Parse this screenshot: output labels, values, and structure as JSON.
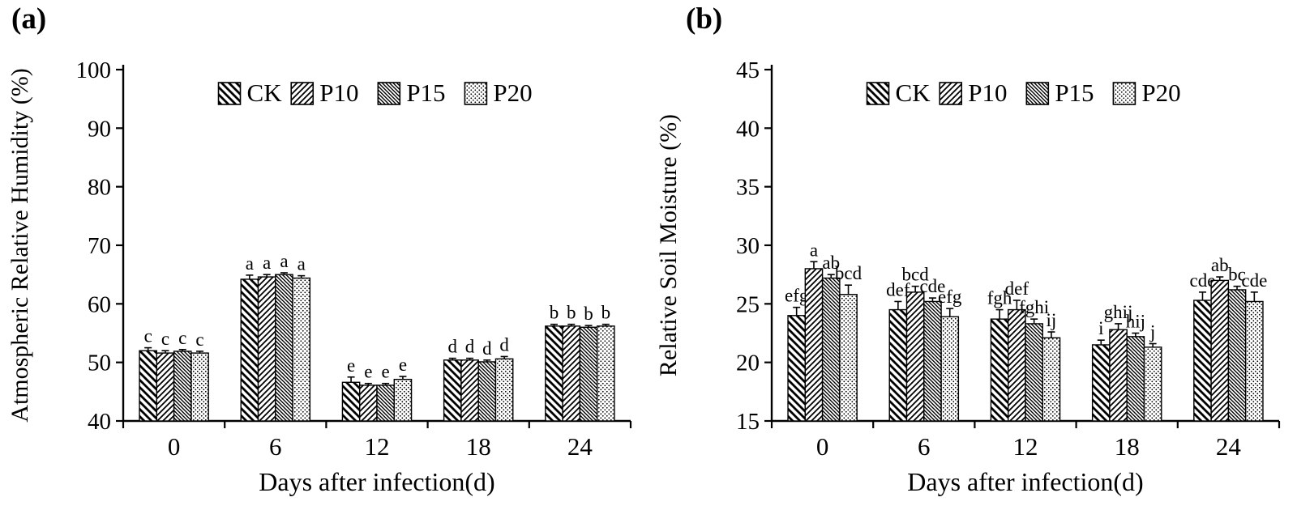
{
  "colors": {
    "foreground": "#000000",
    "background": "#ffffff"
  },
  "chart_data": [
    {
      "panel_label": "(a)",
      "type": "bar",
      "title": "",
      "ylabel": "Atmospheric Relative Humidity (%)",
      "xlabel": "Days after infection(d)",
      "ylim": [
        40,
        100
      ],
      "yticks": [
        40,
        50,
        60,
        70,
        80,
        90,
        100
      ],
      "categories": [
        "0",
        "6",
        "12",
        "18",
        "24"
      ],
      "grid": false,
      "legend_position": "top-center-inside",
      "legend": [
        "CK",
        "P10",
        "P15",
        "P20"
      ],
      "series": [
        {
          "name": "CK",
          "pattern": "diag-wide",
          "values": [
            52.0,
            64.2,
            46.6,
            50.4,
            56.2
          ],
          "errors": [
            0.5,
            0.7,
            0.9,
            0.3,
            0.3
          ],
          "sig_letters": [
            "c",
            "a",
            "e",
            "d",
            "b"
          ]
        },
        {
          "name": "P10",
          "pattern": "diag-up",
          "values": [
            51.6,
            64.6,
            46.1,
            50.4,
            56.2
          ],
          "errors": [
            0.4,
            0.4,
            0.3,
            0.3,
            0.3
          ],
          "sig_letters": [
            "c",
            "a",
            "e",
            "d",
            "b"
          ]
        },
        {
          "name": "P15",
          "pattern": "diag-dense",
          "values": [
            51.9,
            65.0,
            46.1,
            50.1,
            56.0
          ],
          "errors": [
            0.3,
            0.3,
            0.3,
            0.3,
            0.3
          ],
          "sig_letters": [
            "c",
            "a",
            "e",
            "d",
            "b"
          ]
        },
        {
          "name": "P20",
          "pattern": "dots",
          "values": [
            51.6,
            64.4,
            47.1,
            50.6,
            56.2
          ],
          "errors": [
            0.3,
            0.4,
            0.5,
            0.4,
            0.3
          ],
          "sig_letters": [
            "c",
            "a",
            "e",
            "d",
            "b"
          ]
        }
      ]
    },
    {
      "panel_label": "(b)",
      "type": "bar",
      "title": "",
      "ylabel": "Relative Soil Moisture (%)",
      "xlabel": "Days after infection(d)",
      "ylim": [
        15,
        45
      ],
      "yticks": [
        15,
        20,
        25,
        30,
        35,
        40,
        45
      ],
      "categories": [
        "0",
        "6",
        "12",
        "18",
        "24"
      ],
      "grid": false,
      "legend_position": "top-center-inside",
      "legend": [
        "CK",
        "P10",
        "P15",
        "P20"
      ],
      "series": [
        {
          "name": "CK",
          "pattern": "diag-wide",
          "values": [
            24.0,
            24.5,
            23.7,
            21.5,
            25.3
          ],
          "errors": [
            0.7,
            0.7,
            0.8,
            0.4,
            0.7
          ],
          "sig_letters": [
            "efg",
            "def",
            "fgh",
            "i",
            "cde"
          ]
        },
        {
          "name": "P10",
          "pattern": "diag-up",
          "values": [
            28.0,
            26.0,
            24.5,
            22.8,
            27.0
          ],
          "errors": [
            0.6,
            0.5,
            0.8,
            0.5,
            0.3
          ],
          "sig_letters": [
            "a",
            "bcd",
            "def",
            "ghij",
            "ab"
          ]
        },
        {
          "name": "P15",
          "pattern": "diag-dense",
          "values": [
            27.2,
            25.2,
            23.3,
            22.2,
            26.2
          ],
          "errors": [
            0.3,
            0.3,
            0.4,
            0.3,
            0.3
          ],
          "sig_letters": [
            "ab",
            "cde",
            "fghi",
            "hij",
            "bc"
          ]
        },
        {
          "name": "P20",
          "pattern": "dots",
          "values": [
            25.8,
            23.9,
            22.1,
            21.3,
            25.2
          ],
          "errors": [
            0.8,
            0.7,
            0.5,
            0.3,
            0.8
          ],
          "sig_letters": [
            "bcd",
            "efg",
            "ij",
            "j",
            "cde"
          ]
        }
      ]
    }
  ]
}
